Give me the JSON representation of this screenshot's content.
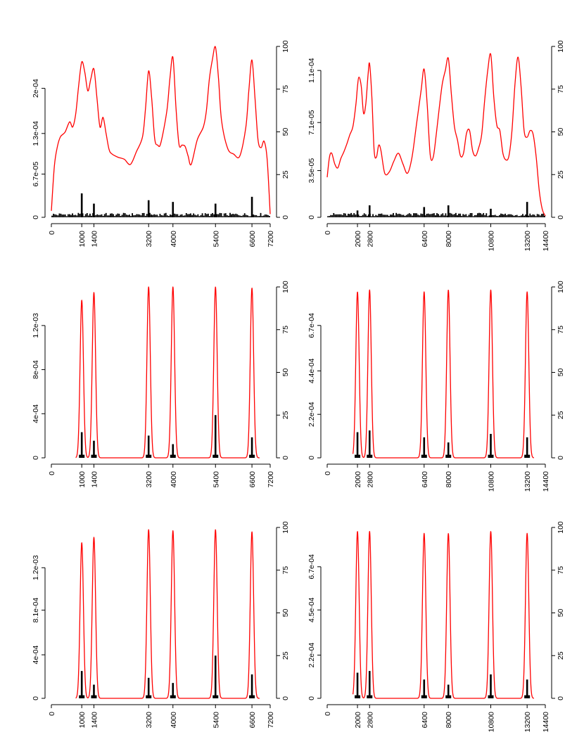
{
  "colors": {
    "density": "#ff0000",
    "counts": "#000000",
    "axes": "#000000",
    "background": "#ffffff"
  },
  "chart_data": [
    {
      "type": "line",
      "layout_position": "top-left",
      "xlim": [
        0,
        7200
      ],
      "x_ticks": [
        "0",
        "1000",
        "1400",
        "3200",
        "4000",
        "5400",
        "6600",
        "7200"
      ],
      "y_left_ticks": [
        "0",
        "6.7e-05",
        "1.3e-04",
        "2e-04"
      ],
      "y_left_lim": [
        0,
        0.000265
      ],
      "y_right_ticks": [
        "0",
        "25",
        "50",
        "75",
        "100"
      ],
      "y_right_lim": [
        0,
        100
      ],
      "series": [
        {
          "role": "density",
          "axis": "left",
          "kind": "line",
          "x": [
            0,
            100,
            200,
            300,
            450,
            600,
            700,
            800,
            900,
            1000,
            1100,
            1200,
            1300,
            1400,
            1500,
            1600,
            1700,
            1800,
            1900,
            2000,
            2200,
            2400,
            2600,
            2800,
            3000,
            3100,
            3200,
            3300,
            3400,
            3500,
            3600,
            3800,
            3900,
            4000,
            4100,
            4200,
            4300,
            4400,
            4500,
            4600,
            4800,
            5000,
            5100,
            5200,
            5300,
            5400,
            5500,
            5600,
            5800,
            6000,
            6200,
            6400,
            6500,
            6600,
            6700,
            6800,
            6900,
            7000,
            7100,
            7200
          ],
          "y": [
            1e-05,
            8e-05,
            0.00011,
            0.000125,
            0.000132,
            0.000148,
            0.00014,
            0.00016,
            0.000205,
            0.000241,
            0.000225,
            0.000196,
            0.000215,
            0.00023,
            0.000185,
            0.00014,
            0.000155,
            0.00013,
            0.000105,
            9.8e-05,
            9.3e-05,
            9e-05,
            8.2e-05,
            0.000102,
            0.000125,
            0.00017,
            0.000227,
            0.000185,
            0.000122,
            0.000112,
            0.000115,
            0.000165,
            0.000215,
            0.000248,
            0.00017,
            0.000113,
            0.000112,
            0.00011,
            9.5e-05,
            8.2e-05,
            0.00012,
            0.00014,
            0.000165,
            0.000215,
            0.000245,
            0.000264,
            0.000215,
            0.00015,
            0.000107,
            9.8e-05,
            9.5e-05,
            0.00014,
            0.000198,
            0.000244,
            0.000185,
            0.00012,
            0.000108,
            0.000118,
            9e-05,
            5e-06
          ]
        },
        {
          "role": "counts",
          "axis": "right",
          "kind": "spike",
          "x": [
            1000,
            1400,
            3200,
            4000,
            5400,
            6600
          ],
          "y": [
            14,
            8,
            10,
            9,
            8,
            12
          ],
          "baseline_noise": 2
        }
      ]
    },
    {
      "type": "line",
      "layout_position": "top-right",
      "xlim": [
        0,
        14400
      ],
      "x_ticks": [
        "0",
        "2000",
        "2800",
        "6400",
        "8000",
        "10800",
        "13200",
        "14400"
      ],
      "y_left_ticks": [
        "0",
        "3.5e-05",
        "7.1e-05",
        "1.1e-04"
      ],
      "y_left_lim": [
        0,
        0.000128
      ],
      "y_right_ticks": [
        "0",
        "25",
        "50",
        "75",
        "100"
      ],
      "y_right_lim": [
        0,
        100
      ],
      "series": [
        {
          "role": "density",
          "axis": "left",
          "kind": "line",
          "x": [
            0,
            150,
            300,
            500,
            700,
            900,
            1100,
            1300,
            1500,
            1700,
            1900,
            2000,
            2100,
            2250,
            2400,
            2550,
            2700,
            2800,
            2950,
            3100,
            3250,
            3400,
            3550,
            3800,
            4100,
            4400,
            4700,
            5000,
            5300,
            5600,
            5900,
            6200,
            6400,
            6600,
            6800,
            7000,
            7200,
            7400,
            7600,
            7800,
            8000,
            8200,
            8400,
            8600,
            8800,
            9000,
            9200,
            9400,
            9600,
            9800,
            10000,
            10200,
            10400,
            10600,
            10800,
            11000,
            11200,
            11400,
            11600,
            11800,
            12000,
            12200,
            12400,
            12600,
            12800,
            13000,
            13200,
            13400,
            13600,
            13800,
            14000,
            14200,
            14400
          ],
          "y": [
            3e-05,
            4.5e-05,
            4.8e-05,
            4e-05,
            3.7e-05,
            4.4e-05,
            4.9e-05,
            5.5e-05,
            6.2e-05,
            6.8e-05,
            8.5e-05,
            9.8e-05,
            0.000105,
            9.8e-05,
            7.8e-05,
            8.5e-05,
            0.000107,
            0.000115,
            9e-05,
            5e-05,
            4.5e-05,
            5.4e-05,
            5e-05,
            3.3e-05,
            3.4e-05,
            4.2e-05,
            4.8e-05,
            4e-05,
            3.3e-05,
            4.5e-05,
            7e-05,
            9.5e-05,
            0.000111,
            8.5e-05,
            4.7e-05,
            4.5e-05,
            6.2e-05,
            8.2e-05,
            0.0001,
            0.00011,
            0.000119,
            9.2e-05,
            6.8e-05,
            5.8e-05,
            4.6e-05,
            4.8e-05,
            6.3e-05,
            6.5e-05,
            5e-05,
            4.6e-05,
            5.2e-05,
            6.2e-05,
            8.8e-05,
            0.00011,
            0.000122,
            9e-05,
            6.9e-05,
            6.5e-05,
            4.8e-05,
            4.3e-05,
            4.6e-05,
            6.5e-05,
            0.0001,
            0.00012,
            9.8e-05,
            6.5e-05,
            6e-05,
            6.5e-05,
            6.2e-05,
            4.5e-05,
            2e-05,
            6e-06,
            1e-06
          ]
        },
        {
          "role": "counts",
          "axis": "right",
          "kind": "spike",
          "x": [
            2000,
            2800,
            6400,
            8000,
            10800,
            13200
          ],
          "y": [
            4,
            7,
            6,
            7,
            5,
            9
          ],
          "baseline_noise": 2
        }
      ]
    },
    {
      "type": "line",
      "layout_position": "middle-left",
      "xlim": [
        0,
        7200
      ],
      "x_ticks": [
        "0",
        "1000",
        "1400",
        "3200",
        "4000",
        "5400",
        "6600",
        "7200"
      ],
      "y_left_ticks": [
        "0",
        "4e-04",
        "8e-04",
        "1.2e-03"
      ],
      "y_left_lim": [
        0,
        0.00155
      ],
      "y_right_ticks": [
        "0",
        "25",
        "50",
        "75",
        "100"
      ],
      "y_right_lim": [
        0,
        100
      ],
      "series": [
        {
          "role": "density",
          "axis": "left",
          "kind": "peaks",
          "peaks_x": [
            1000,
            1400,
            3200,
            4000,
            5400,
            6600
          ],
          "peaks_y": [
            0.00143,
            0.0015,
            0.00155,
            0.00155,
            0.00155,
            0.00154
          ],
          "width_x": 55,
          "xrange": [
            800,
            6850
          ]
        },
        {
          "role": "counts",
          "axis": "right",
          "kind": "spike",
          "x": [
            1000,
            1400,
            3200,
            4000,
            5400,
            6600
          ],
          "y": [
            15,
            10,
            13,
            8,
            25,
            12
          ]
        }
      ]
    },
    {
      "type": "line",
      "layout_position": "middle-right",
      "xlim": [
        0,
        14400
      ],
      "x_ticks": [
        "0",
        "2000",
        "2800",
        "6400",
        "8000",
        "10800",
        "13200",
        "14400"
      ],
      "y_left_ticks": [
        "0",
        "2.2e-04",
        "4.4e-04",
        "6.7e-04"
      ],
      "y_left_lim": [
        0,
        0.000865
      ],
      "y_right_ticks": [
        "0",
        "25",
        "50",
        "75",
        "100"
      ],
      "y_right_lim": [
        0,
        100
      ],
      "series": [
        {
          "role": "density",
          "axis": "left",
          "kind": "peaks",
          "peaks_x": [
            2000,
            2800,
            6400,
            8000,
            10800,
            13200
          ],
          "peaks_y": [
            0.00084,
            0.00085,
            0.00084,
            0.00085,
            0.00085,
            0.00084
          ],
          "width_x": 110,
          "xrange": [
            1700,
            13650
          ]
        },
        {
          "role": "counts",
          "axis": "right",
          "kind": "spike",
          "x": [
            2000,
            2800,
            6400,
            8000,
            10800,
            13200
          ],
          "y": [
            15,
            16,
            12,
            9,
            14,
            12
          ]
        }
      ]
    },
    {
      "type": "line",
      "layout_position": "bottom-left",
      "xlim": [
        0,
        7200
      ],
      "x_ticks": [
        "0",
        "1000",
        "1400",
        "3200",
        "4000",
        "5400",
        "6600",
        "7200"
      ],
      "y_left_ticks": [
        "0",
        "4e-04",
        "8.1e-04",
        "1.2e-03"
      ],
      "y_left_lim": [
        0,
        0.00157
      ],
      "y_right_ticks": [
        "0",
        "25",
        "50",
        "75",
        "100"
      ],
      "y_right_lim": [
        0,
        100
      ],
      "series": [
        {
          "role": "density",
          "axis": "left",
          "kind": "peaks",
          "peaks_x": [
            1000,
            1400,
            3200,
            4000,
            5400,
            6600
          ],
          "peaks_y": [
            0.00143,
            0.00148,
            0.00155,
            0.00154,
            0.00155,
            0.00153
          ],
          "width_x": 55,
          "xrange": [
            800,
            6850
          ]
        },
        {
          "role": "counts",
          "axis": "right",
          "kind": "spike",
          "x": [
            1000,
            1400,
            3200,
            4000,
            5400,
            6600
          ],
          "y": [
            16,
            8,
            12,
            9,
            25,
            14
          ]
        }
      ]
    },
    {
      "type": "line",
      "layout_position": "bottom-right",
      "xlim": [
        0,
        14400
      ],
      "x_ticks": [
        "0",
        "2000",
        "2800",
        "6400",
        "8000",
        "10800",
        "13200",
        "14400"
      ],
      "y_left_ticks": [
        "0",
        "2.2e-04",
        "4.5e-04",
        "6.7e-04"
      ],
      "y_left_lim": [
        0,
        0.00087
      ],
      "y_right_ticks": [
        "0",
        "25",
        "50",
        "75",
        "100"
      ],
      "y_right_lim": [
        0,
        100
      ],
      "series": [
        {
          "role": "density",
          "axis": "left",
          "kind": "peaks",
          "peaks_x": [
            2000,
            2800,
            6400,
            8000,
            10800,
            13200
          ],
          "peaks_y": [
            0.00085,
            0.00085,
            0.00084,
            0.00084,
            0.00085,
            0.00084
          ],
          "width_x": 110,
          "xrange": [
            1700,
            13650
          ]
        },
        {
          "role": "counts",
          "axis": "right",
          "kind": "spike",
          "x": [
            2000,
            2800,
            6400,
            8000,
            10800,
            13200
          ],
          "y": [
            15,
            16,
            11,
            8,
            14,
            11
          ]
        }
      ]
    }
  ]
}
